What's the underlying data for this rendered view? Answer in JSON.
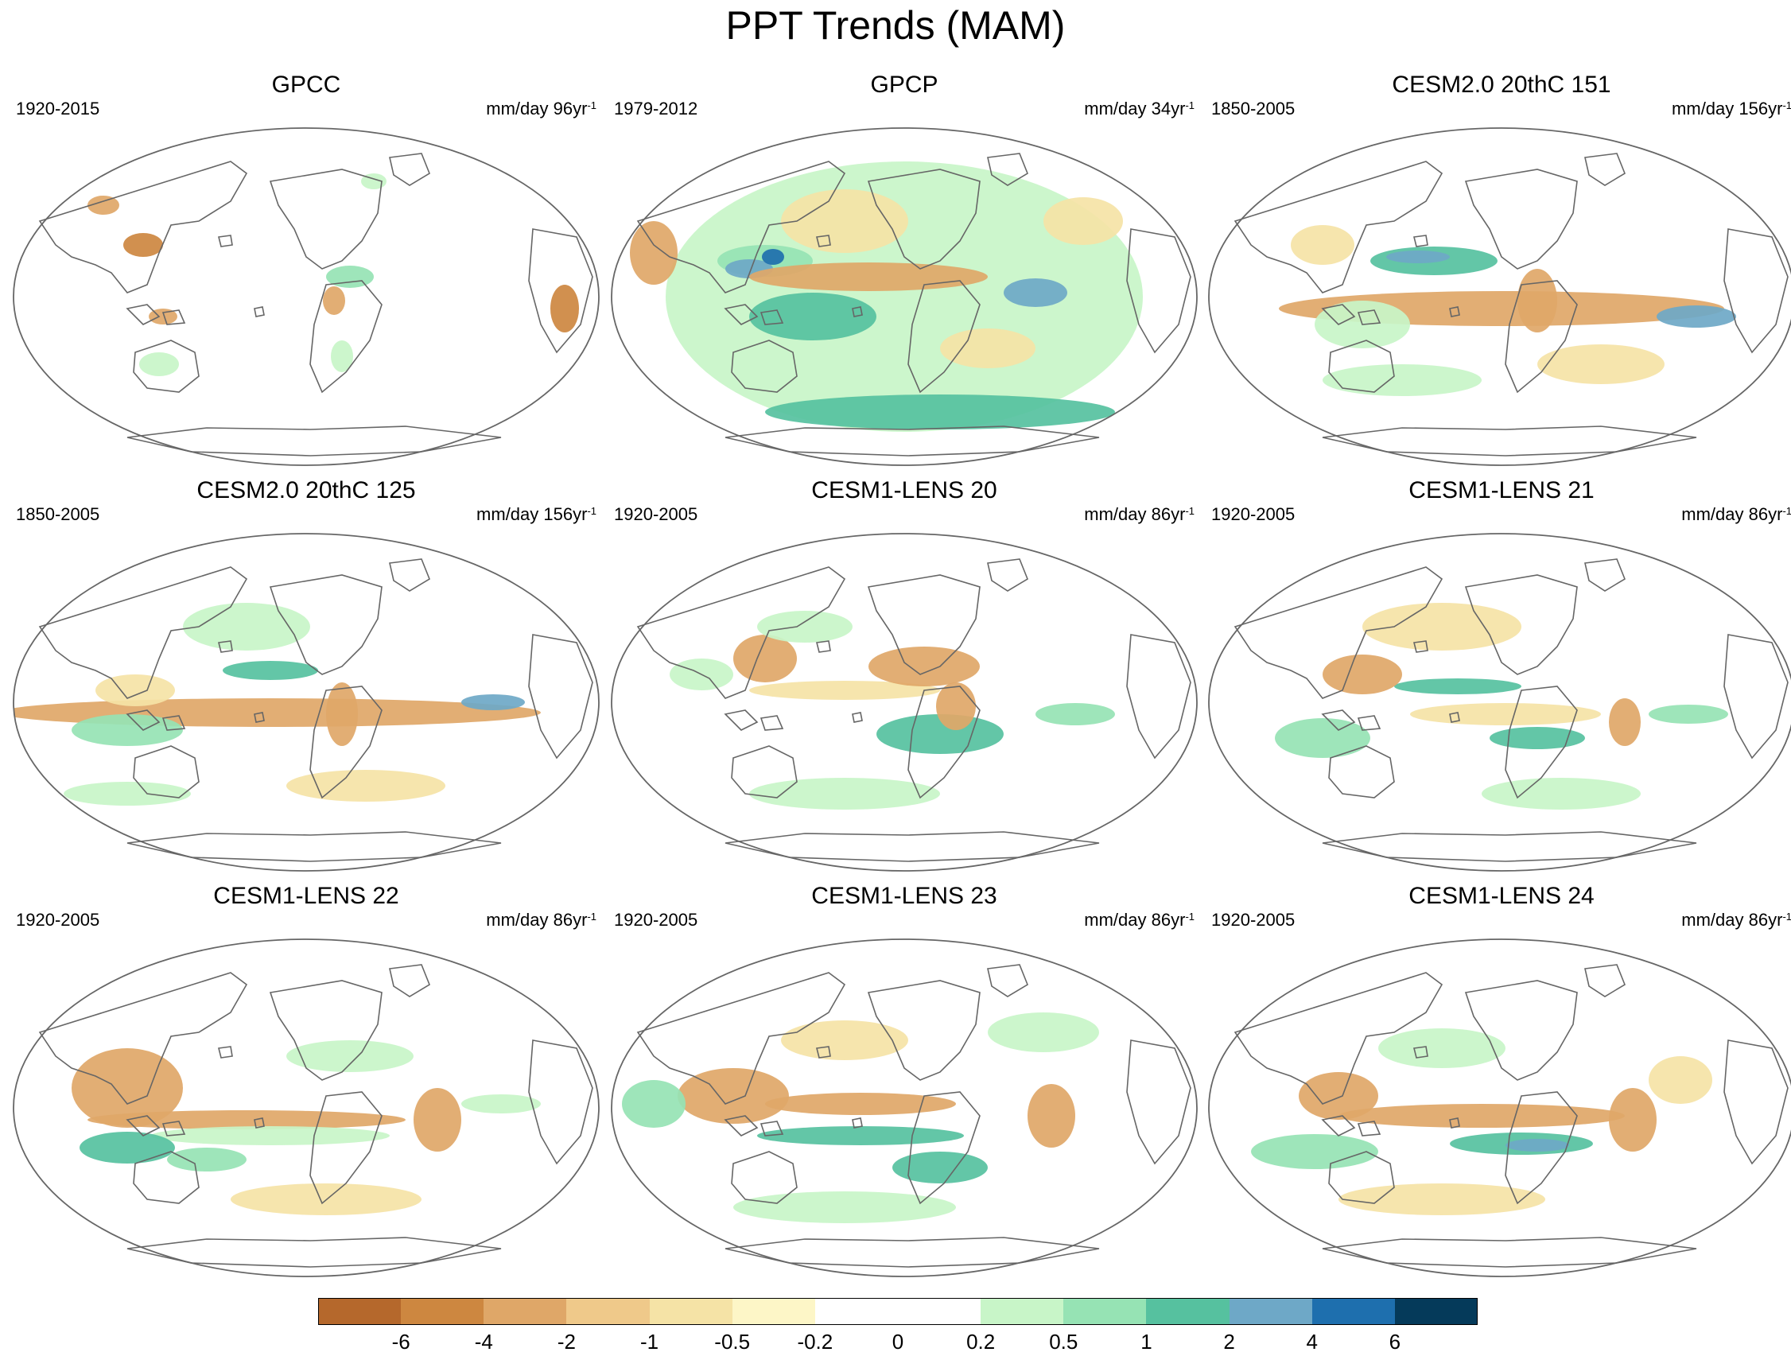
{
  "title": "PPT Trends (MAM)",
  "panels": [
    {
      "name": "GPCC",
      "period": "1920-2015",
      "units": "mm/day 96yr",
      "units_sup": "-1",
      "coverage": "land-only"
    },
    {
      "name": "GPCP",
      "period": "1979-2012",
      "units": "mm/day 34yr",
      "units_sup": "-1",
      "coverage": "global"
    },
    {
      "name": "CESM2.0 20thC 151",
      "period": "1850-2005",
      "units": "mm/day 156yr",
      "units_sup": "-1",
      "coverage": "global"
    },
    {
      "name": "CESM2.0 20thC 125",
      "period": "1850-2005",
      "units": "mm/day 156yr",
      "units_sup": "-1",
      "coverage": "global"
    },
    {
      "name": "CESM1-LENS 20",
      "period": "1920-2005",
      "units": "mm/day 86yr",
      "units_sup": "-1",
      "coverage": "global"
    },
    {
      "name": "CESM1-LENS 21",
      "period": "1920-2005",
      "units": "mm/day 86yr",
      "units_sup": "-1",
      "coverage": "global"
    },
    {
      "name": "CESM1-LENS 22",
      "period": "1920-2005",
      "units": "mm/day 86yr",
      "units_sup": "-1",
      "coverage": "global"
    },
    {
      "name": "CESM1-LENS 23",
      "period": "1920-2005",
      "units": "mm/day 86yr",
      "units_sup": "-1",
      "coverage": "global"
    },
    {
      "name": "CESM1-LENS 24",
      "period": "1920-2005",
      "units": "mm/day 86yr",
      "units_sup": "-1",
      "coverage": "global"
    }
  ],
  "colorbar": {
    "labels": [
      "-6",
      "-4",
      "-2",
      "-1",
      "-0.5",
      "-0.2",
      "0",
      "0.2",
      "0.5",
      "1",
      "2",
      "4",
      "6"
    ],
    "colors": [
      "#b5682c",
      "#cd8740",
      "#dfa768",
      "#efc98a",
      "#f5e3a6",
      "#fdf6c7",
      "#ffffff",
      "#ffffff",
      "#c8f5c8",
      "#96e3b4",
      "#56c19f",
      "#6ea8c7",
      "#1e6fae",
      "#053a5a"
    ]
  },
  "style": {
    "coastline": "#666666",
    "outline": "#666666",
    "dry_strong": "#cd8740",
    "dry_mid": "#dfa768",
    "dry_light": "#f5e3a6",
    "wet_light": "#c8f5c8",
    "wet_mid": "#96e3b4",
    "wet_strong": "#56c19f",
    "wet_blue": "#6ea8c7",
    "wet_dark": "#1e6fae"
  }
}
